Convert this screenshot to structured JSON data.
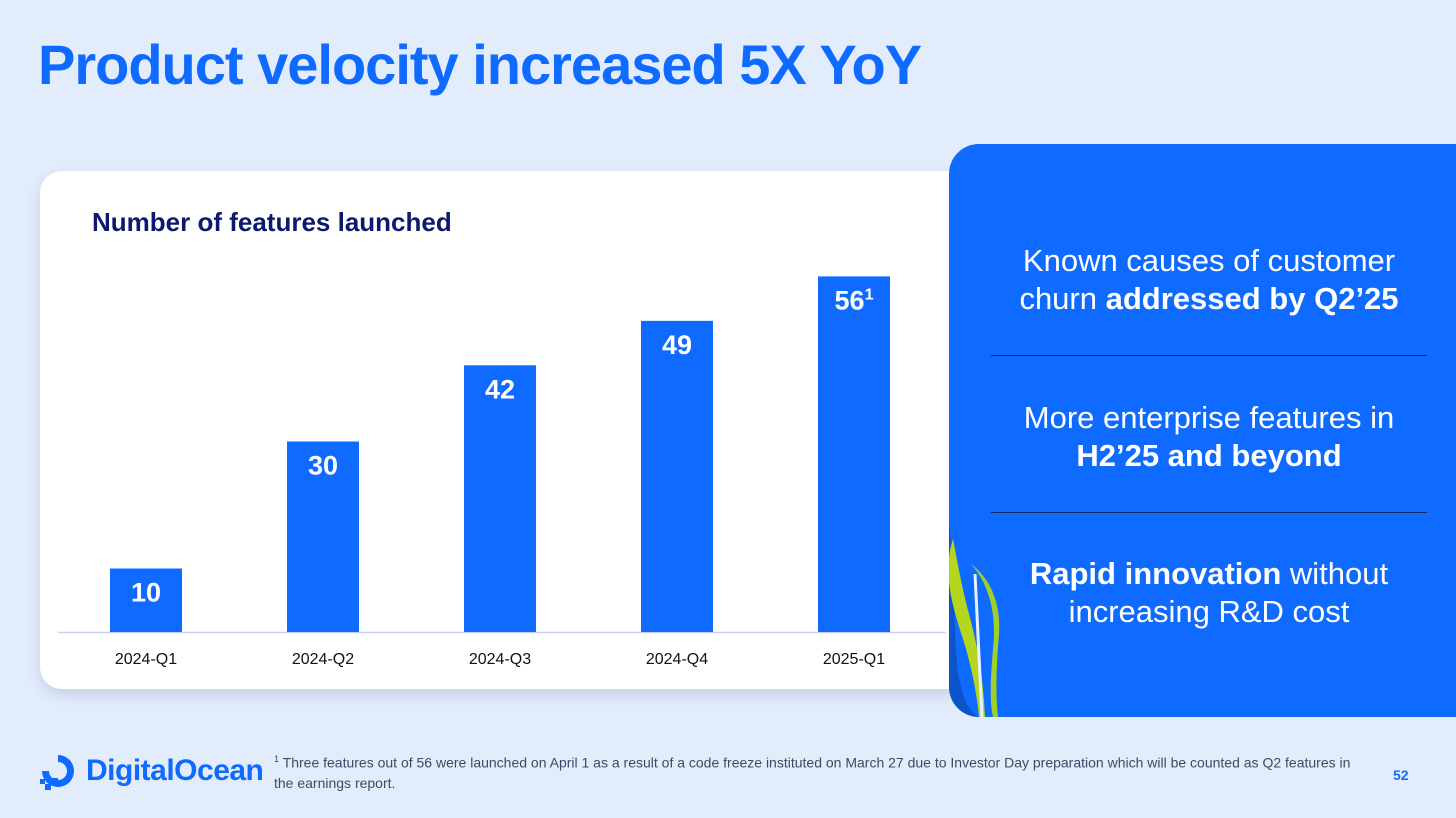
{
  "slide": {
    "title": "Product velocity increased 5X YoY",
    "page_number": "52"
  },
  "chart_data": {
    "type": "bar",
    "title": "Number of features launched",
    "categories": [
      "2024-Q1",
      "2024-Q2",
      "2024-Q3",
      "2024-Q4",
      "2025-Q1"
    ],
    "values": [
      10,
      30,
      42,
      49,
      56
    ],
    "data_labels": [
      "10",
      "30",
      "42",
      "49",
      "56"
    ],
    "footnote_marker_on_category": "2025-Q1",
    "footnote_marker": "1",
    "xlabel": "",
    "ylabel": "",
    "ylim": [
      0,
      62
    ],
    "grid": false,
    "bar_color": "#0f6bff"
  },
  "highlights": [
    {
      "pre": "Known causes of customer churn ",
      "bold": "addressed by Q2’25",
      "post": ""
    },
    {
      "pre": "More enterprise features in ",
      "bold": "H2’25 and beyond",
      "post": ""
    },
    {
      "pre": "",
      "bold": "Rapid innovation",
      "post": " without increasing R&D cost"
    }
  ],
  "footer": {
    "brand": "DigitalOcean",
    "footnote_marker": "1",
    "footnote_text": " Three features out of 56 were launched on April 1 as a result of a code freeze instituted on March 27 due to Investor Day preparation which will be counted as Q2 features in the earnings report."
  },
  "colors": {
    "brand_blue": "#0f6bff",
    "background": "#e3ecfb",
    "chart_title": "#0b1a6e",
    "leaf_green": "#b4d61e"
  }
}
